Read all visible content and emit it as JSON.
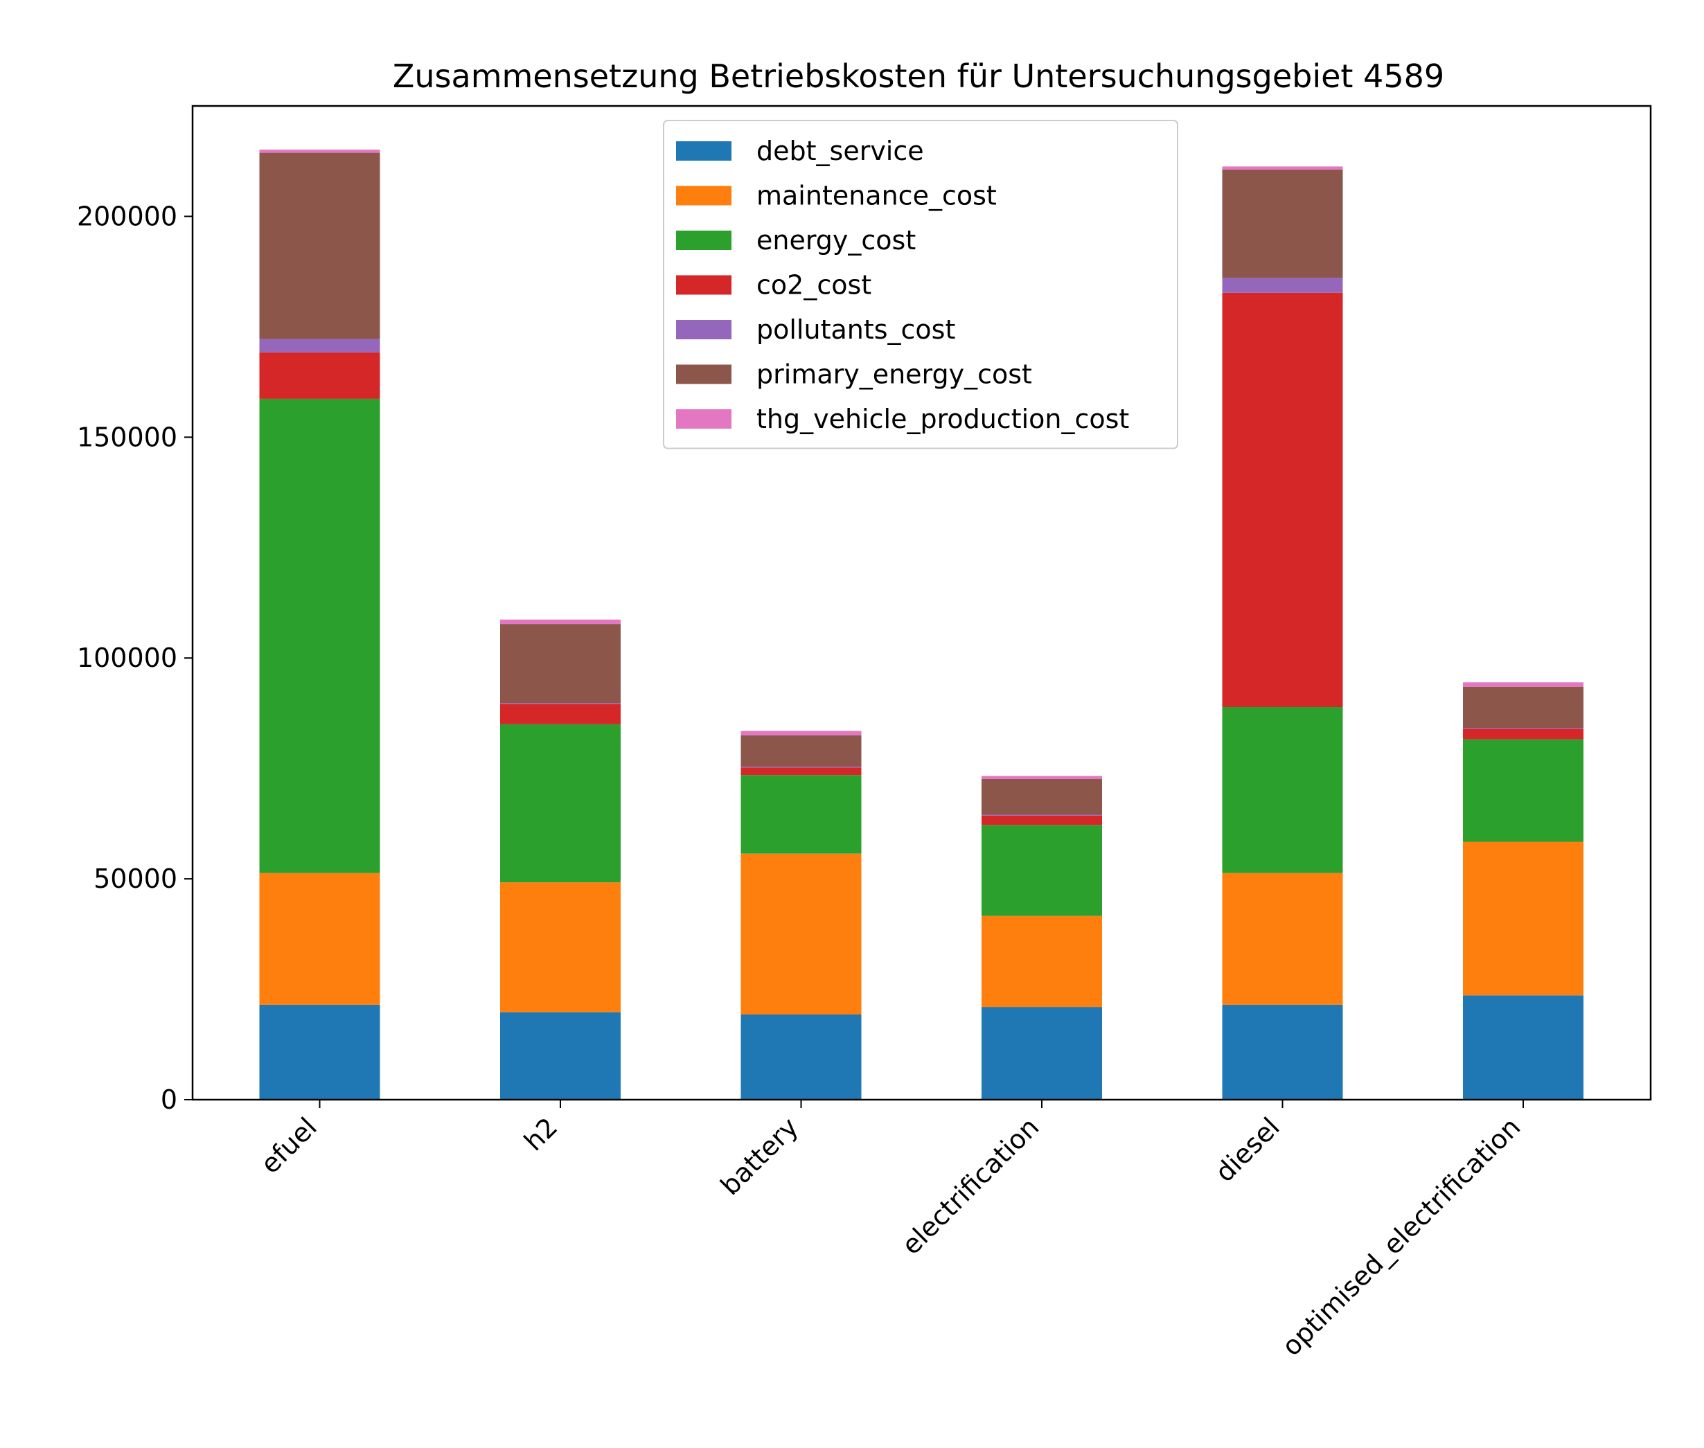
{
  "chart_data": {
    "type": "bar",
    "stacked": true,
    "title": "Zusammensetzung Betriebskosten für Untersuchungsgebiet 4589",
    "xlabel": "",
    "ylabel": "",
    "categories": [
      "efuel",
      "h2",
      "battery",
      "electrification",
      "diesel",
      "optimised_electrification"
    ],
    "ylim": [
      0,
      225000
    ],
    "yticks": [
      0,
      50000,
      100000,
      150000,
      200000
    ],
    "ytick_labels": [
      "0",
      "50000",
      "100000",
      "150000",
      "200000"
    ],
    "grid": false,
    "legend_position": "upper center",
    "series": [
      {
        "name": "debt_service",
        "color": "#1f77b4",
        "values": [
          21500,
          19800,
          19300,
          21000,
          21500,
          23600
        ]
      },
      {
        "name": "maintenance_cost",
        "color": "#ff7f0e",
        "values": [
          29800,
          29400,
          36400,
          20600,
          29800,
          34800
        ]
      },
      {
        "name": "energy_cost",
        "color": "#2ca02c",
        "values": [
          107400,
          35800,
          17800,
          20600,
          37600,
          23200
        ]
      },
      {
        "name": "co2_cost",
        "color": "#d62728",
        "values": [
          10500,
          4600,
          1700,
          2100,
          93800,
          2400
        ]
      },
      {
        "name": "pollutants_cost",
        "color": "#9467bd",
        "values": [
          3000,
          200,
          200,
          200,
          3400,
          200
        ]
      },
      {
        "name": "primary_energy_cost",
        "color": "#8c564b",
        "values": [
          42200,
          17900,
          7100,
          8100,
          24500,
          9300
        ]
      },
      {
        "name": "thg_vehicle_production_cost",
        "color": "#e377c2",
        "values": [
          700,
          1000,
          1000,
          700,
          700,
          1000
        ]
      }
    ]
  }
}
